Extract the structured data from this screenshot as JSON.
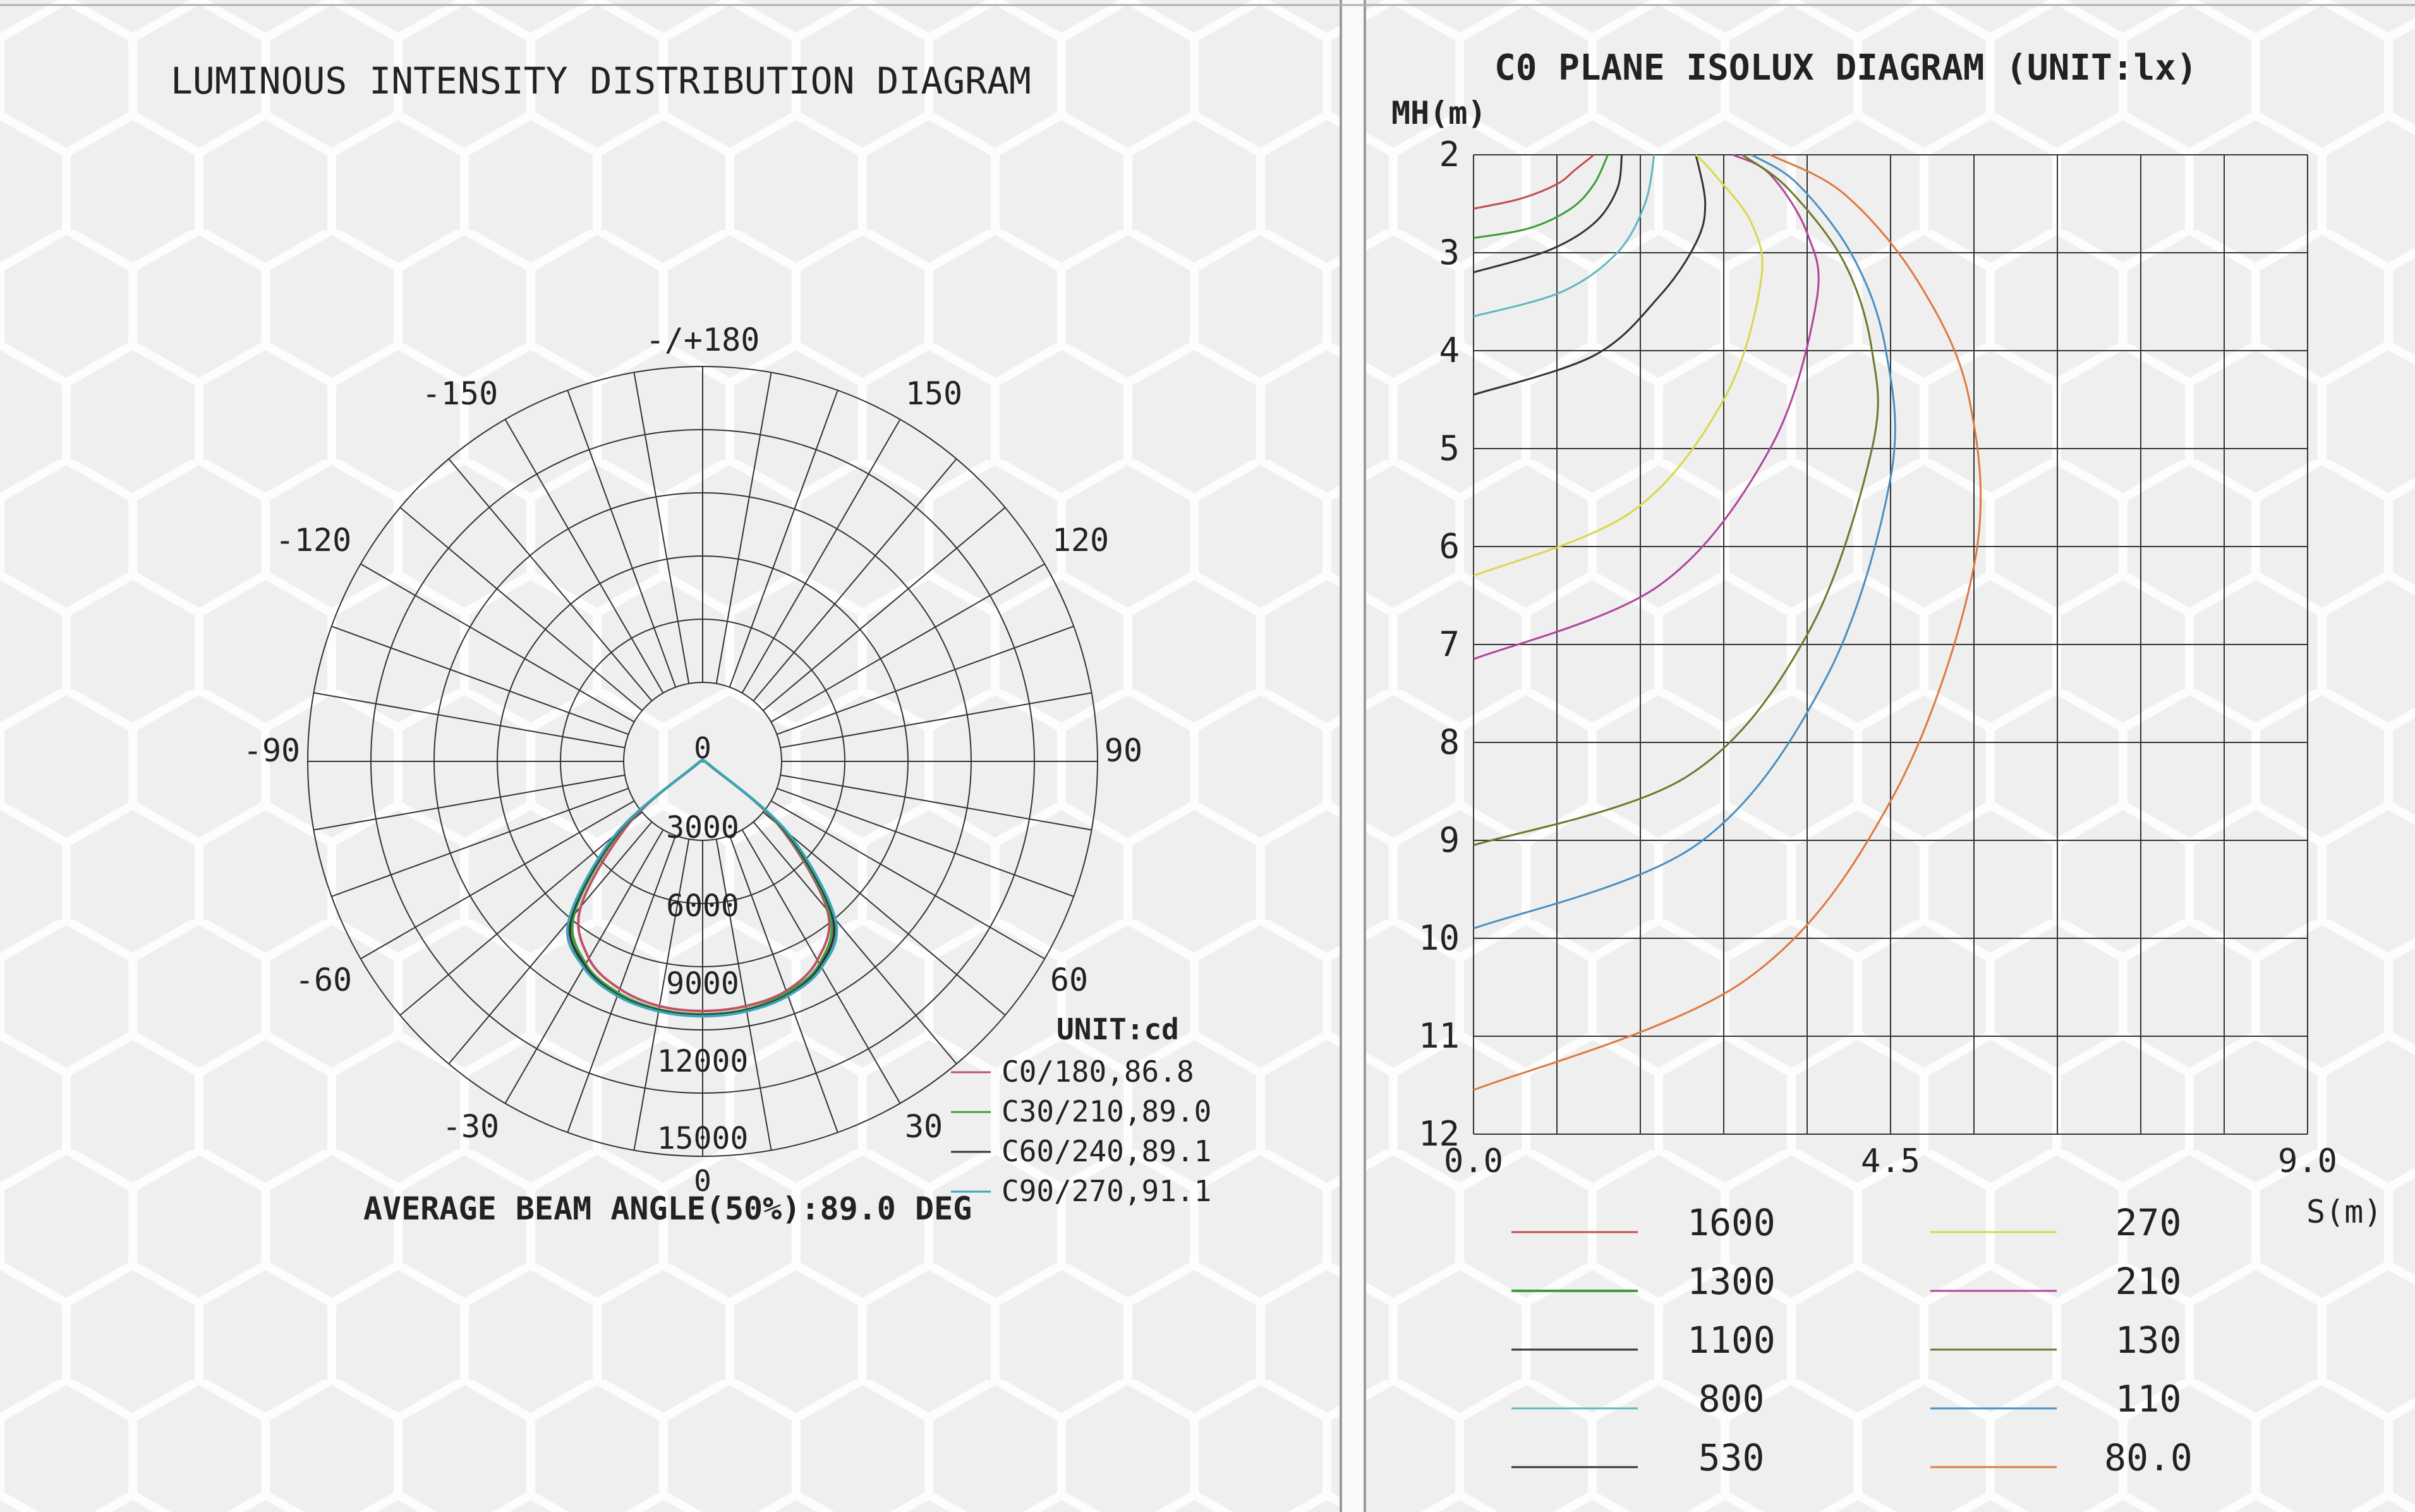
{
  "polar": {
    "title": "LUMINOUS INTENSITY DISTRIBUTION DIAGRAM",
    "unit_label": "UNIT:cd",
    "beam_text": "AVERAGE BEAM ANGLE(50%):89.0 DEG",
    "angle_labels": [
      "-/+180",
      "150",
      "-150",
      "120",
      "-120",
      "90",
      "-90",
      "60",
      "-60",
      "30",
      "-30",
      "0",
      "0"
    ],
    "radial_labels": [
      "3000",
      "6000",
      "9000",
      "12000",
      "15000"
    ],
    "colors": {
      "grid": "#333333"
    }
  },
  "isolux": {
    "title": "C0 PLANE ISOLUX DIAGRAM (UNIT:lx)",
    "y_axis_label": "MH(m)",
    "x_axis_label": "S(m)",
    "x_tick_labels": [
      "0.0",
      "4.5",
      "9.0"
    ],
    "y_tick_labels": [
      "2",
      "3",
      "4",
      "5",
      "6",
      "7",
      "8",
      "9",
      "10",
      "11",
      "12"
    ],
    "legend_left": [
      "1600",
      "1300",
      "1100",
      "800",
      "530"
    ],
    "legend_right": [
      "270",
      "210",
      "130",
      "110",
      "80.0"
    ]
  },
  "chart_data": [
    {
      "type": "line",
      "subtype": "polar",
      "title": "LUMINOUS INTENSITY DISTRIBUTION DIAGRAM",
      "unit": "cd",
      "r_range": [
        0,
        15000
      ],
      "r_ticks": [
        3000,
        6000,
        9000,
        12000,
        15000
      ],
      "angle_range_deg": [
        -180,
        180
      ],
      "beam_angle_deg": 89.0,
      "series": [
        {
          "name": "C0/180,86.8",
          "color": "#c0506a",
          "angle": [
            -60,
            -50,
            -40,
            -30,
            -20,
            -10,
            0,
            10,
            20,
            30,
            40,
            50,
            60
          ],
          "values": [
            400,
            4500,
            9000,
            10800,
            11500,
            11800,
            11850,
            11800,
            11600,
            10900,
            9200,
            4700,
            400
          ]
        },
        {
          "name": "C30/210,89.0",
          "color": "#3ca03c",
          "angle": [
            -60,
            -50,
            -40,
            -30,
            -20,
            -10,
            0,
            10,
            20,
            30,
            40,
            50,
            60
          ],
          "values": [
            450,
            5000,
            9500,
            11100,
            11700,
            11950,
            12000,
            11950,
            11700,
            11100,
            9400,
            4900,
            450
          ]
        },
        {
          "name": "C60/240,89.1",
          "color": "#333333",
          "angle": [
            -60,
            -50,
            -40,
            -30,
            -20,
            -10,
            0,
            10,
            20,
            30,
            40,
            50,
            60
          ],
          "values": [
            480,
            5200,
            9700,
            11200,
            11800,
            12000,
            12050,
            12000,
            11800,
            11200,
            9600,
            5100,
            480
          ]
        },
        {
          "name": "C90/270,91.1",
          "color": "#3aa6b8",
          "angle": [
            -60,
            -50,
            -40,
            -30,
            -20,
            -10,
            0,
            10,
            20,
            30,
            40,
            50,
            60
          ],
          "values": [
            520,
            5400,
            9900,
            11300,
            11850,
            12050,
            12100,
            12050,
            11850,
            11300,
            9800,
            5300,
            520
          ]
        }
      ]
    },
    {
      "type": "line",
      "subtype": "isolux",
      "title": "C0 PLANE ISOLUX DIAGRAM (UNIT:lx)",
      "xlabel": "S(m)",
      "ylabel": "MH(m)",
      "xlim": [
        0,
        9
      ],
      "ylim": [
        2,
        12
      ],
      "y_inverted": true,
      "series": [
        {
          "name": "1600",
          "color": "#c0504d",
          "x": [
            0,
            0.5,
            0.9,
            1.1,
            1.3
          ],
          "y": [
            2.55,
            2.45,
            2.3,
            2.15,
            2.0
          ]
        },
        {
          "name": "1300",
          "color": "#3a9e3a",
          "x": [
            0,
            0.6,
            1.05,
            1.3,
            1.45
          ],
          "y": [
            2.85,
            2.75,
            2.55,
            2.3,
            2.0
          ]
        },
        {
          "name": "1100",
          "color": "#333333",
          "x": [
            0,
            0.8,
            1.3,
            1.55,
            1.6
          ],
          "y": [
            3.2,
            2.98,
            2.7,
            2.35,
            2.0
          ]
        },
        {
          "name": "800",
          "color": "#5fb7c2",
          "x": [
            0,
            0.95,
            1.55,
            1.85,
            1.95
          ],
          "y": [
            3.65,
            3.4,
            3.0,
            2.5,
            2.0
          ]
        },
        {
          "name": "530",
          "color": "#333333",
          "x": [
            0,
            1.3,
            2.0,
            2.4,
            2.5,
            2.4
          ],
          "y": [
            4.45,
            4.05,
            3.45,
            2.9,
            2.5,
            2.0
          ]
        },
        {
          "name": "270",
          "color": "#d8d84a",
          "x": [
            0,
            1.7,
            2.7,
            3.1,
            3.0,
            2.6,
            2.4
          ],
          "y": [
            6.3,
            5.65,
            4.5,
            3.3,
            2.7,
            2.2,
            2.0
          ]
        },
        {
          "name": "210",
          "color": "#b0449c",
          "x": [
            0,
            2.0,
            3.2,
            3.7,
            3.6,
            3.2,
            2.8
          ],
          "y": [
            7.15,
            6.4,
            5.0,
            3.5,
            2.8,
            2.2,
            2.0
          ]
        },
        {
          "name": "130",
          "color": "#6b7a2a",
          "x": [
            0,
            2.3,
            3.6,
            4.3,
            4.3,
            4.0,
            3.4,
            2.9
          ],
          "y": [
            9.05,
            8.35,
            6.9,
            5.0,
            4.0,
            3.1,
            2.35,
            2.0
          ]
        },
        {
          "name": "110",
          "color": "#4a8fc0",
          "x": [
            0,
            2.4,
            3.8,
            4.5,
            4.45,
            4.1,
            3.5,
            3.0
          ],
          "y": [
            9.9,
            9.05,
            7.35,
            5.3,
            4.0,
            3.05,
            2.3,
            2.0
          ]
        },
        {
          "name": "80.0",
          "color": "#e07840",
          "x": [
            0,
            2.9,
            4.5,
            5.4,
            5.35,
            4.8,
            4.0,
            3.2
          ],
          "y": [
            11.55,
            10.45,
            8.6,
            6.2,
            4.5,
            3.3,
            2.4,
            2.0
          ]
        }
      ]
    }
  ]
}
